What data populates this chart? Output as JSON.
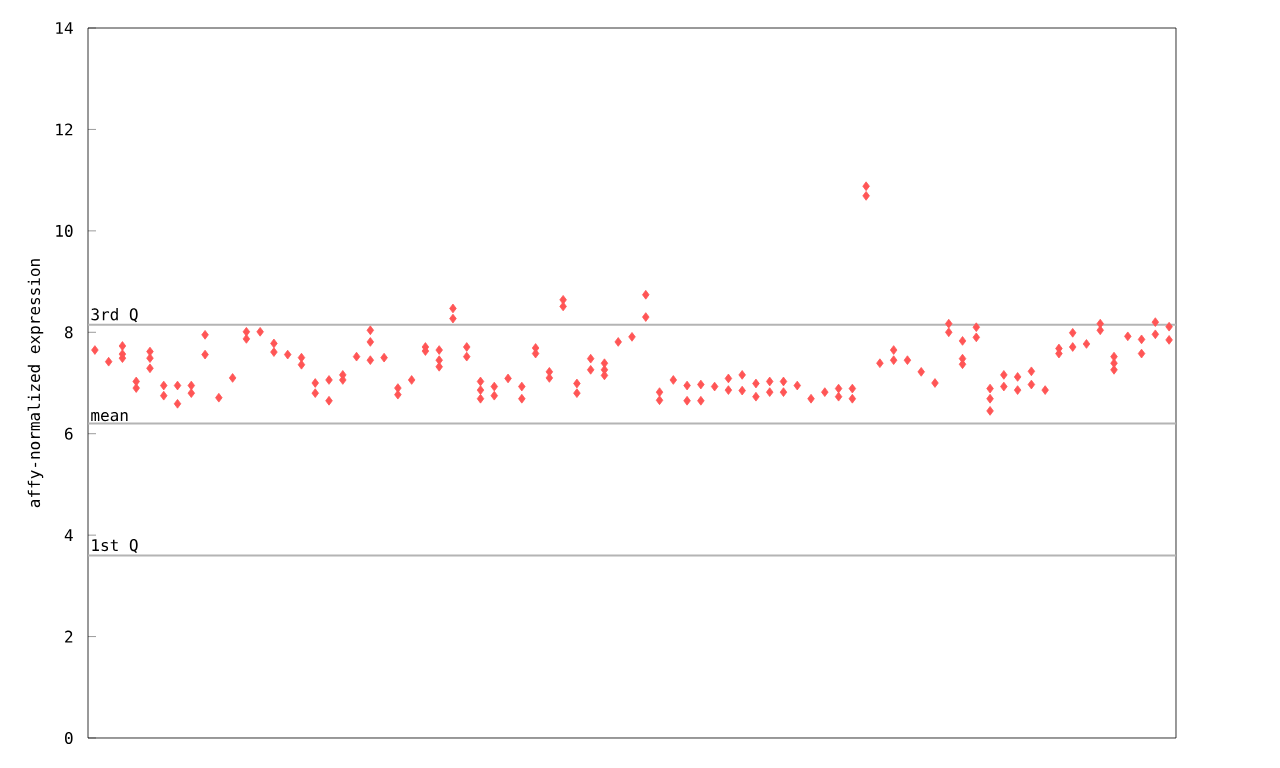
{
  "chart_data": {
    "type": "scatter",
    "ylabel": "affy-normalized expression",
    "categories": [
      null,
      null,
      null,
      null,
      null,
      null,
      null,
      null,
      null,
      null,
      null,
      null,
      null,
      null,
      null,
      null,
      null,
      null,
      null,
      null,
      null,
      null,
      null,
      null,
      null,
      null,
      null,
      null,
      null,
      null,
      null,
      null,
      null,
      null,
      null,
      null,
      null,
      null,
      null,
      null,
      null,
      null,
      null,
      null,
      null,
      null,
      null,
      null,
      null,
      null,
      null,
      null,
      null,
      null,
      null,
      null,
      null,
      null,
      null,
      null,
      null,
      null,
      null,
      null,
      null,
      null,
      null,
      null,
      null,
      null,
      null,
      null,
      null,
      null,
      null,
      null,
      null,
      null,
      null
    ],
    "series": [
      {
        "color": "#ff5555",
        "values": [
          7.65,
          7.42,
          7.73,
          7.03,
          7.62,
          6.95,
          6.95,
          6.95,
          7.95,
          6.71,
          7.1,
          8.01,
          8.01,
          7.78,
          7.56,
          7.5,
          7.0,
          7.06,
          7.16,
          7.52,
          8.04,
          7.5,
          6.9,
          7.06,
          7.71,
          7.65,
          8.47,
          7.71,
          7.03,
          6.93,
          7.09,
          6.93,
          7.69,
          7.22,
          8.64,
          6.99,
          7.48,
          7.39,
          7.81,
          7.91,
          8.74,
          6.82,
          7.06,
          6.95,
          6.97,
          6.93,
          7.09,
          7.16,
          6.99,
          7.03,
          7.03,
          6.95,
          6.69,
          6.82,
          6.89,
          6.89,
          10.88,
          7.39,
          7.65,
          7.45,
          7.22,
          7.0,
          8.17,
          7.83,
          8.1,
          6.89,
          7.16,
          7.12,
          7.23,
          6.86,
          7.68,
          7.99,
          7.77,
          8.17,
          7.52,
          7.92,
          7.86,
          8.2,
          8.11
        ]
      },
      {
        "color": "#ff5555",
        "values": [
          null,
          null,
          7.57,
          6.9,
          7.49,
          6.75,
          6.59,
          6.8,
          7.56,
          null,
          null,
          7.87,
          null,
          7.61,
          null,
          7.36,
          6.8,
          6.65,
          7.06,
          null,
          7.81,
          null,
          6.77,
          null,
          7.63,
          7.45,
          8.27,
          7.52,
          6.86,
          6.75,
          null,
          6.69,
          7.58,
          7.1,
          8.51,
          6.8,
          7.26,
          7.26,
          null,
          null,
          8.3,
          6.66,
          null,
          6.65,
          6.65,
          null,
          6.86,
          6.85,
          6.73,
          6.82,
          6.82,
          null,
          null,
          null,
          6.73,
          6.69,
          10.69,
          null,
          7.45,
          null,
          null,
          null,
          8.0,
          7.48,
          7.9,
          6.69,
          6.93,
          6.86,
          6.97,
          null,
          7.58,
          7.71,
          null,
          8.04,
          7.39,
          null,
          7.58,
          7.96,
          7.85
        ]
      },
      {
        "color": "#ff5555",
        "values": [
          null,
          null,
          7.49,
          null,
          7.29,
          null,
          null,
          null,
          null,
          null,
          null,
          null,
          null,
          null,
          null,
          null,
          null,
          null,
          null,
          null,
          7.45,
          null,
          null,
          null,
          null,
          7.32,
          null,
          null,
          6.69,
          null,
          null,
          null,
          null,
          null,
          null,
          null,
          null,
          7.15,
          null,
          null,
          null,
          null,
          null,
          null,
          null,
          null,
          null,
          null,
          null,
          null,
          null,
          null,
          null,
          null,
          null,
          null,
          null,
          null,
          null,
          null,
          null,
          null,
          null,
          7.37,
          null,
          6.45,
          null,
          null,
          null,
          null,
          null,
          null,
          null,
          null,
          7.26,
          null,
          null,
          null,
          null
        ]
      }
    ],
    "marker": "diamond",
    "ylim": [
      0,
      14
    ],
    "yticks": [
      0,
      2,
      4,
      6,
      8,
      10,
      12,
      14
    ],
    "tick_labels": "y",
    "ref_lines": [
      {
        "axis": "y",
        "value": 8.15,
        "label": "3rd Q",
        "color": "#b4b4b4"
      },
      {
        "axis": "y",
        "value": 6.2,
        "label": "mean",
        "color": "#b4b4b4"
      },
      {
        "axis": "y",
        "value": 3.6,
        "label": "1st Q",
        "color": "#b4b4b4"
      }
    ]
  }
}
